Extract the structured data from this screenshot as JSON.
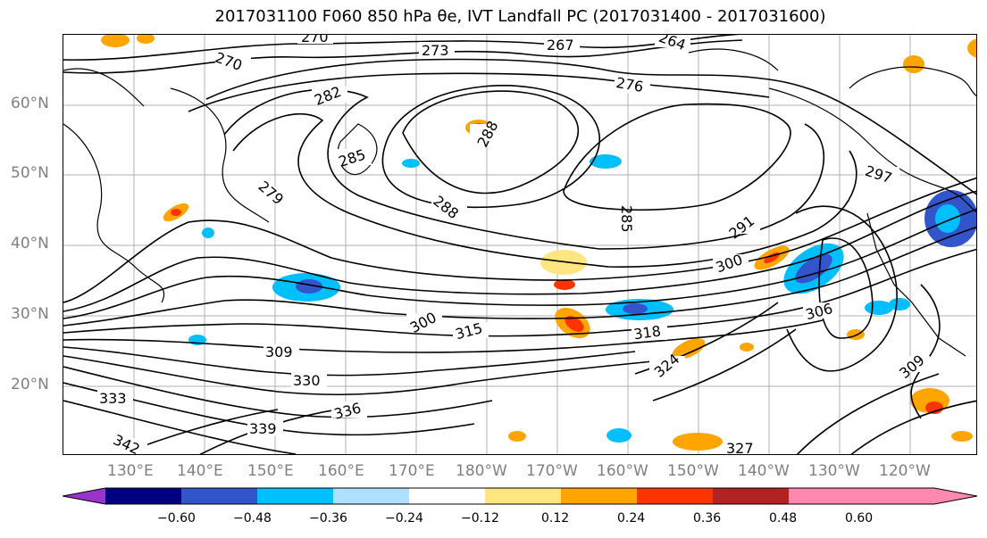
{
  "title": "2017031100 F060 850 hPa θe, IVT Landfall PC (2017031400 - 2017031600)",
  "map": {
    "lat_labels": [
      "60°N",
      "50°N",
      "40°N",
      "30°N",
      "20°N"
    ],
    "lon_labels": [
      "130°E",
      "140°E",
      "150°E",
      "160°E",
      "170°E",
      "180°W",
      "170°W",
      "160°W",
      "150°W",
      "140°W",
      "130°W",
      "120°W"
    ],
    "contour_labels": [
      "270",
      "267",
      "264",
      "273",
      "270",
      "276",
      "282",
      "285",
      "288",
      "279",
      "288",
      "285",
      "291",
      "300",
      "297",
      "306",
      "300",
      "315",
      "309",
      "318",
      "324",
      "309",
      "330",
      "333",
      "327",
      "336",
      "339",
      "342"
    ],
    "contour_color": "#000000",
    "land_outline_color": "#000000"
  },
  "colorbar": {
    "ticks": [
      "−0.60",
      "−0.48",
      "−0.36",
      "−0.24",
      "−0.12",
      "0.12",
      "0.24",
      "0.36",
      "0.48",
      "0.60"
    ],
    "colors": {
      "under": "#9933cc",
      "b1": "#000080",
      "b2": "#3355cc",
      "b3": "#00bfff",
      "b4": "#b0e0ff",
      "mid": "#ffffff",
      "r1": "#ffe680",
      "r2": "#ffa500",
      "r3": "#ff3300",
      "r4": "#b22222",
      "over": "#ff88b0"
    }
  }
}
